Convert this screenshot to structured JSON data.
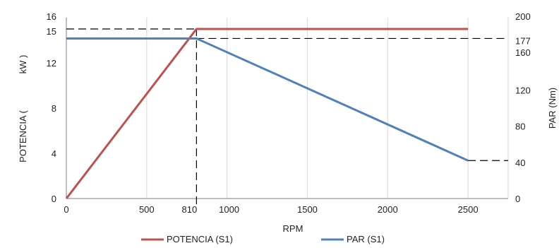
{
  "chart_data": {
    "type": "line",
    "x_axis": {
      "label": "RPM",
      "ticks": [
        "0",
        "500",
        "810",
        "1000",
        "1500",
        "2000",
        "2500"
      ],
      "range": [
        0,
        2750
      ]
    },
    "y_left": {
      "label_parts": [
        "POTENCIA (",
        "kW )"
      ],
      "ticks": [
        "0",
        "4",
        "8",
        "12",
        "15",
        "16"
      ],
      "range": [
        0,
        16
      ]
    },
    "y_right": {
      "label": "PAR (Nm)",
      "ticks": [
        "0",
        "40",
        "80",
        "120",
        "160",
        "177",
        "200"
      ],
      "range": [
        0,
        200
      ]
    },
    "series": [
      {
        "name": "POTENCIA (S1)",
        "axis": "left",
        "color": "#C0504D",
        "x": [
          0,
          810,
          2500
        ],
        "y": [
          0,
          15,
          15
        ]
      },
      {
        "name": "PAR (S1)",
        "axis": "right",
        "color": "#4F81BD",
        "x": [
          0,
          810,
          2500
        ],
        "y": [
          177,
          177,
          42
        ]
      }
    ],
    "reference_lines": {
      "x_value": 810,
      "left_y_value": 15,
      "right_y_values": [
        177,
        42
      ]
    },
    "grid": "vertical",
    "legend": "bottom"
  }
}
